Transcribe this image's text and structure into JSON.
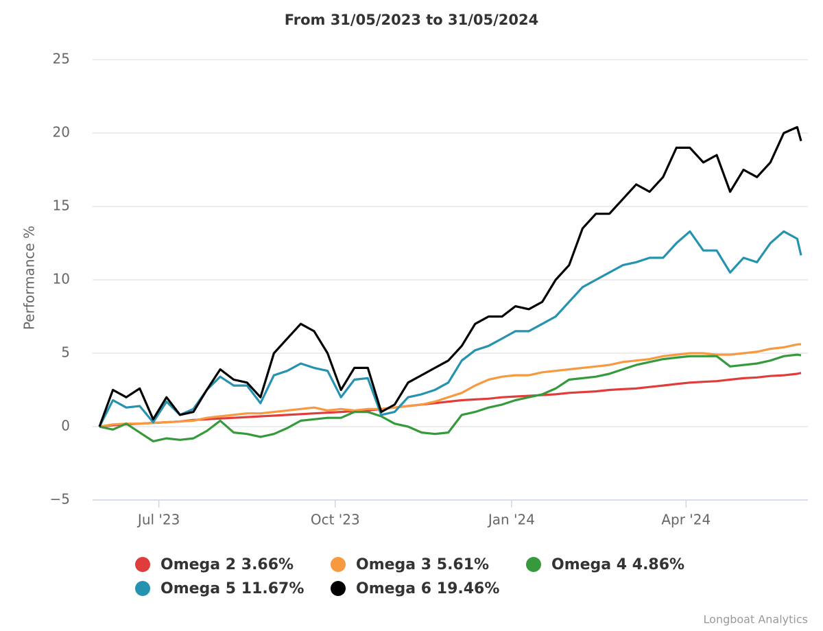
{
  "chart_data": {
    "type": "line",
    "title": "From 31/05/2023 to 31/05/2024",
    "y_label": "Performance %",
    "credits": "Longboat Analytics",
    "x": [
      "2023-05-31",
      "2023-06-07",
      "2023-06-14",
      "2023-06-21",
      "2023-06-28",
      "2023-07-05",
      "2023-07-12",
      "2023-07-19",
      "2023-07-26",
      "2023-08-02",
      "2023-08-09",
      "2023-08-16",
      "2023-08-23",
      "2023-08-30",
      "2023-09-06",
      "2023-09-13",
      "2023-09-20",
      "2023-09-27",
      "2023-10-04",
      "2023-10-11",
      "2023-10-18",
      "2023-10-25",
      "2023-11-01",
      "2023-11-08",
      "2023-11-15",
      "2023-11-22",
      "2023-11-29",
      "2023-12-06",
      "2023-12-13",
      "2023-12-20",
      "2023-12-27",
      "2024-01-03",
      "2024-01-10",
      "2024-01-17",
      "2024-01-24",
      "2024-01-31",
      "2024-02-07",
      "2024-02-14",
      "2024-02-21",
      "2024-02-28",
      "2024-03-06",
      "2024-03-13",
      "2024-03-20",
      "2024-03-27",
      "2024-04-03",
      "2024-04-10",
      "2024-04-17",
      "2024-04-24",
      "2024-05-01",
      "2024-05-08",
      "2024-05-15",
      "2024-05-22",
      "2024-05-29",
      "2024-05-31"
    ],
    "xlim": [
      "2023-05-31",
      "2024-05-31"
    ],
    "xticks": [
      {
        "value": "2023-07-01",
        "label": "Jul '23"
      },
      {
        "value": "2023-10-01",
        "label": "Oct '23"
      },
      {
        "value": "2024-01-01",
        "label": "Jan '24"
      },
      {
        "value": "2024-04-01",
        "label": "Apr '24"
      }
    ],
    "ylim": [
      -5,
      25
    ],
    "yticks": [
      {
        "value": -5,
        "label": "−5"
      },
      0,
      5,
      10,
      15,
      20,
      25
    ],
    "grid": true,
    "legend": "bottom",
    "series": [
      {
        "name": "Omega 2 3.66%",
        "color": "#e03c3c",
        "values": [
          0,
          0.1,
          0.15,
          0.2,
          0.25,
          0.3,
          0.35,
          0.45,
          0.5,
          0.55,
          0.6,
          0.65,
          0.7,
          0.75,
          0.8,
          0.85,
          0.9,
          0.95,
          1.0,
          1.05,
          1.1,
          1.2,
          1.3,
          1.4,
          1.5,
          1.6,
          1.7,
          1.8,
          1.85,
          1.9,
          2.0,
          2.05,
          2.1,
          2.15,
          2.2,
          2.3,
          2.35,
          2.4,
          2.5,
          2.55,
          2.6,
          2.7,
          2.8,
          2.9,
          3.0,
          3.05,
          3.1,
          3.2,
          3.3,
          3.35,
          3.45,
          3.5,
          3.6,
          3.66
        ]
      },
      {
        "name": "Omega 3 5.61%",
        "color": "#f7993f",
        "values": [
          0,
          0.15,
          0.2,
          0.2,
          0.25,
          0.3,
          0.35,
          0.4,
          0.6,
          0.7,
          0.8,
          0.9,
          0.9,
          1.0,
          1.1,
          1.2,
          1.3,
          1.1,
          1.2,
          1.1,
          1.2,
          1.2,
          1.3,
          1.4,
          1.5,
          1.7,
          2.0,
          2.3,
          2.8,
          3.2,
          3.4,
          3.5,
          3.5,
          3.7,
          3.8,
          3.9,
          4.0,
          4.1,
          4.2,
          4.4,
          4.5,
          4.6,
          4.8,
          4.9,
          5.0,
          5.0,
          4.9,
          4.9,
          5.0,
          5.1,
          5.3,
          5.4,
          5.6,
          5.61
        ]
      },
      {
        "name": "Omega 4 4.86%",
        "color": "#369a3c",
        "values": [
          0,
          -0.2,
          0.2,
          -0.4,
          -1.0,
          -0.8,
          -0.9,
          -0.8,
          -0.3,
          0.4,
          -0.4,
          -0.5,
          -0.7,
          -0.5,
          -0.1,
          0.4,
          0.5,
          0.6,
          0.6,
          1.0,
          1.0,
          0.7,
          0.2,
          0.0,
          -0.4,
          -0.5,
          -0.4,
          0.8,
          1.0,
          1.3,
          1.5,
          1.8,
          2.0,
          2.2,
          2.6,
          3.2,
          3.3,
          3.4,
          3.6,
          3.9,
          4.2,
          4.4,
          4.6,
          4.7,
          4.8,
          4.8,
          4.8,
          4.1,
          4.2,
          4.3,
          4.5,
          4.8,
          4.9,
          4.86
        ]
      },
      {
        "name": "Omega 5 11.67%",
        "color": "#2592b0",
        "values": [
          0,
          1.8,
          1.3,
          1.4,
          0.3,
          1.7,
          0.8,
          1.2,
          2.5,
          3.4,
          2.8,
          2.8,
          1.6,
          3.5,
          3.8,
          4.3,
          4.0,
          3.8,
          2.0,
          3.2,
          3.3,
          0.8,
          1.0,
          2.0,
          2.2,
          2.5,
          3.0,
          4.5,
          5.2,
          5.5,
          6.0,
          6.5,
          6.5,
          7.0,
          7.5,
          8.5,
          9.5,
          10.0,
          10.5,
          11.0,
          11.2,
          11.5,
          11.5,
          12.5,
          13.3,
          12.0,
          12.0,
          10.5,
          11.5,
          11.2,
          12.5,
          13.3,
          12.8,
          11.67
        ]
      },
      {
        "name": "Omega 6 19.46%",
        "color": "#000000",
        "values": [
          0,
          2.5,
          2.0,
          2.6,
          0.5,
          2.0,
          0.8,
          1.0,
          2.5,
          3.9,
          3.2,
          3.0,
          2.0,
          5.0,
          6.0,
          7.0,
          6.5,
          5.0,
          2.5,
          4.0,
          4.0,
          1.0,
          1.5,
          3.0,
          3.5,
          4.0,
          4.5,
          5.5,
          7.0,
          7.5,
          7.5,
          8.2,
          8.0,
          8.5,
          10.0,
          11.0,
          13.5,
          14.5,
          14.5,
          15.5,
          16.5,
          16.0,
          17.0,
          19.0,
          19.0,
          18.0,
          18.5,
          16.0,
          17.5,
          17.0,
          18.0,
          20.0,
          20.4,
          19.46
        ]
      }
    ]
  }
}
